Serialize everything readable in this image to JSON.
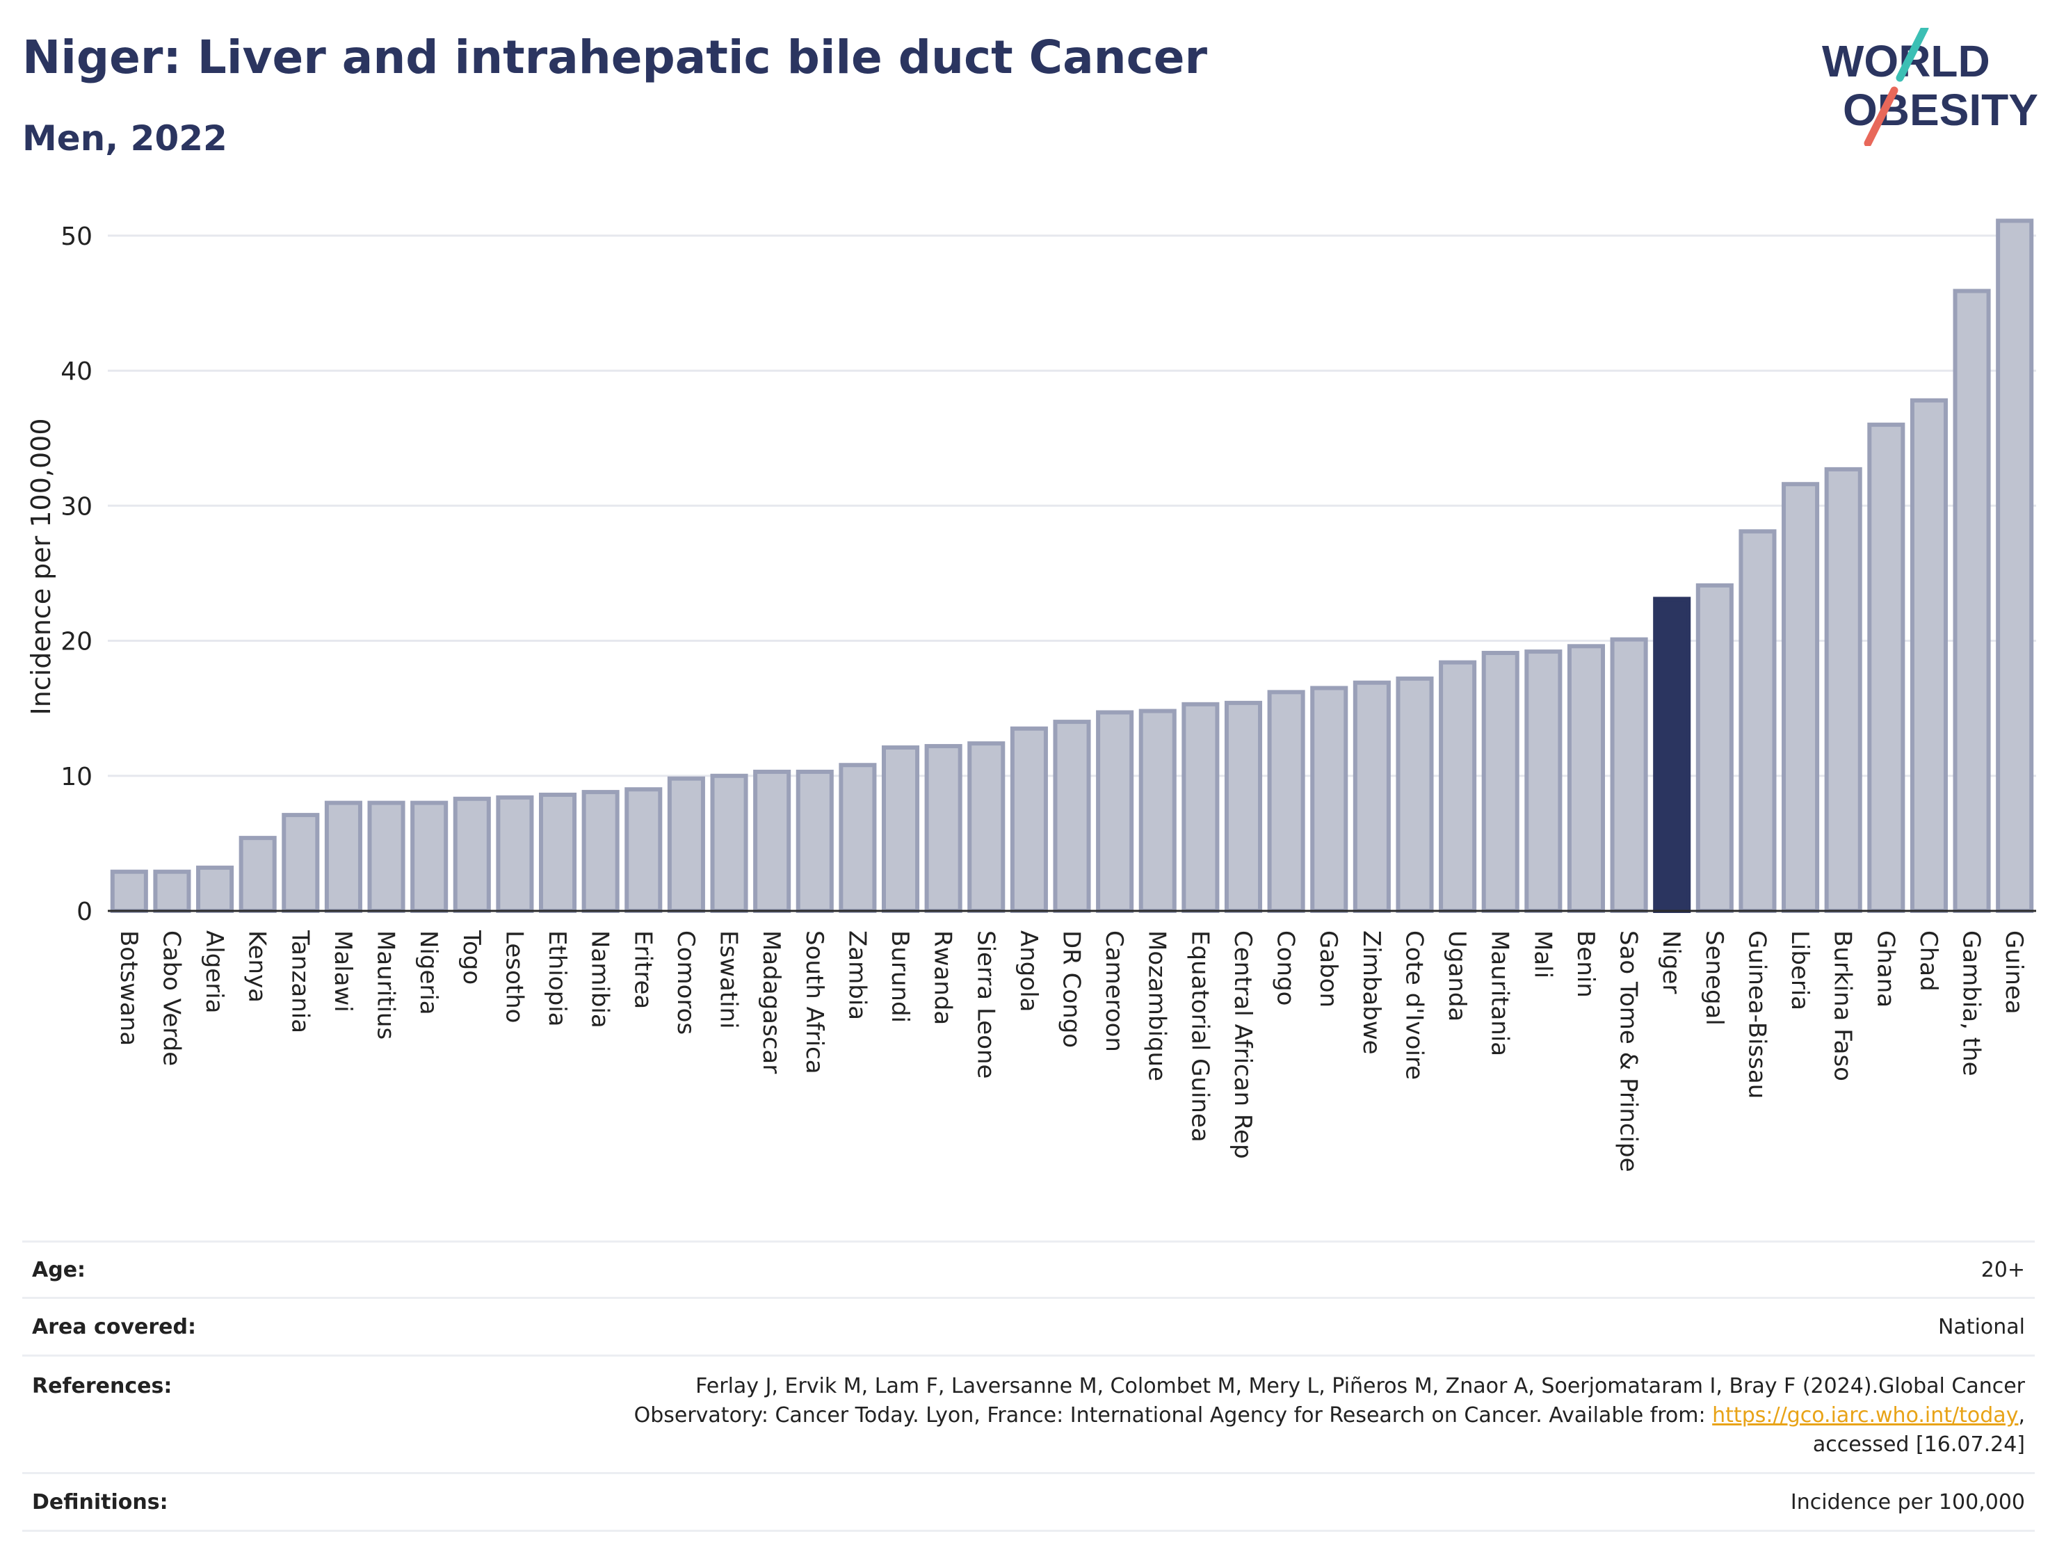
{
  "header": {
    "title": "Niger: Liver and intrahepatic bile duct Cancer",
    "subtitle": "Men, 2022"
  },
  "logo": {
    "line1": "WORLD",
    "line2": "OBESITY",
    "color_text": "#2b3560",
    "color_slash_top": "#3cbfb4",
    "color_slash_bottom": "#e8685a"
  },
  "colors": {
    "bar": "#bfc3d0",
    "bar_stroke": "#9aa0b8",
    "highlight": "#2b3560",
    "grid": "#e6e8ee"
  },
  "chart_data": {
    "type": "bar",
    "title": "Niger: Liver and intrahepatic bile duct Cancer",
    "subtitle": "Men, 2022",
    "xlabel": "",
    "ylabel": "Incidence per 100,000",
    "ylim": [
      0,
      52
    ],
    "yticks": [
      0,
      10,
      20,
      30,
      40,
      50
    ],
    "grid": true,
    "highlight": "Niger",
    "categories": [
      "Botswana",
      "Cabo Verde",
      "Algeria",
      "Kenya",
      "Tanzania",
      "Malawi",
      "Mauritius",
      "Nigeria",
      "Togo",
      "Lesotho",
      "Ethiopia",
      "Namibia",
      "Eritrea",
      "Comoros",
      "Eswatini",
      "Madagascar",
      "South Africa",
      "Zambia",
      "Burundi",
      "Rwanda",
      "Sierra Leone",
      "Angola",
      "DR Congo",
      "Cameroon",
      "Mozambique",
      "Equatorial Guinea",
      "Central African Rep",
      "Congo",
      "Gabon",
      "Zimbabwe",
      "Cote d'Ivoire",
      "Uganda",
      "Mauritania",
      "Mali",
      "Benin",
      "Sao Tome & Principe",
      "Niger",
      "Senegal",
      "Guinea-Bissau",
      "Liberia",
      "Burkina Faso",
      "Ghana",
      "Chad",
      "Gambia, the",
      "Guinea"
    ],
    "values": [
      2.9,
      2.9,
      3.2,
      5.4,
      7.1,
      8.0,
      8.0,
      8.0,
      8.3,
      8.4,
      8.6,
      8.8,
      9.0,
      9.8,
      10.0,
      10.3,
      10.3,
      10.8,
      12.1,
      12.2,
      12.4,
      13.5,
      14.0,
      14.7,
      14.8,
      15.3,
      15.4,
      16.2,
      16.5,
      16.9,
      17.2,
      18.4,
      19.1,
      19.2,
      19.6,
      20.1,
      23.1,
      24.1,
      28.1,
      31.6,
      32.7,
      36.0,
      37.8,
      45.9,
      51.1
    ]
  },
  "meta": {
    "age_label": "Age:",
    "age_value": "20+",
    "area_label": "Area covered:",
    "area_value": "National",
    "references_label": "References:",
    "references_line1": "Ferlay J, Ervik M, Lam F, Laversanne M, Colombet M, Mery L, Piñeros M, Znaor A, Soerjomataram I, Bray F (2024).Global Cancer",
    "references_line2": "Observatory: Cancer Today. Lyon, France: International Agency for Research on Cancer. Available from: ",
    "references_link": "https://gco.iarc.who.int/today",
    "references_line2_end": ",",
    "references_line3": "accessed [16.07.24]",
    "definitions_label": "Definitions:",
    "definitions_value": "Incidence per 100,000"
  }
}
